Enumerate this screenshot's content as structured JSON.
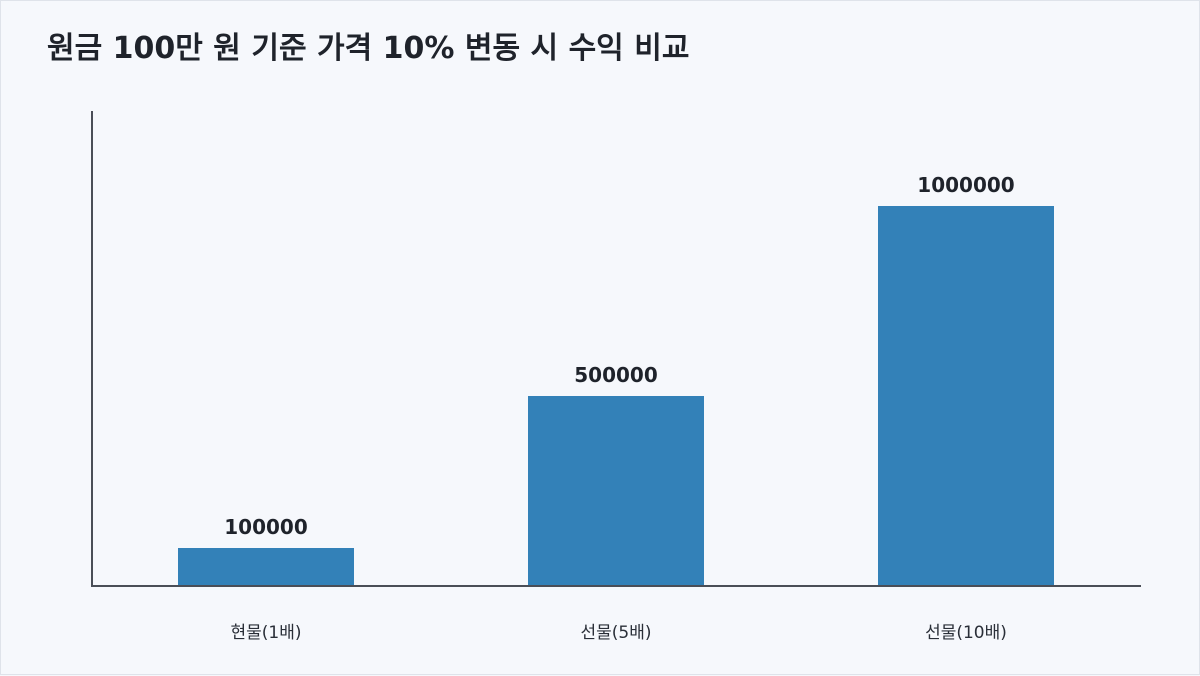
{
  "chart_data": {
    "type": "bar",
    "title": "원금 100만 원 기준 가격 10% 변동 시 수익 비교",
    "categories": [
      "현물(1배)",
      "선물(5배)",
      "선물(10배)"
    ],
    "values": [
      100000,
      500000,
      1000000
    ],
    "ylim": [
      0,
      1250000
    ],
    "xlabel": "",
    "ylabel": "",
    "grid": false,
    "legend": "none",
    "colors": {
      "bar": "#3381b8",
      "axis": "#4a4e57",
      "text": "#1f232b",
      "background": "#f6f8fc"
    }
  }
}
